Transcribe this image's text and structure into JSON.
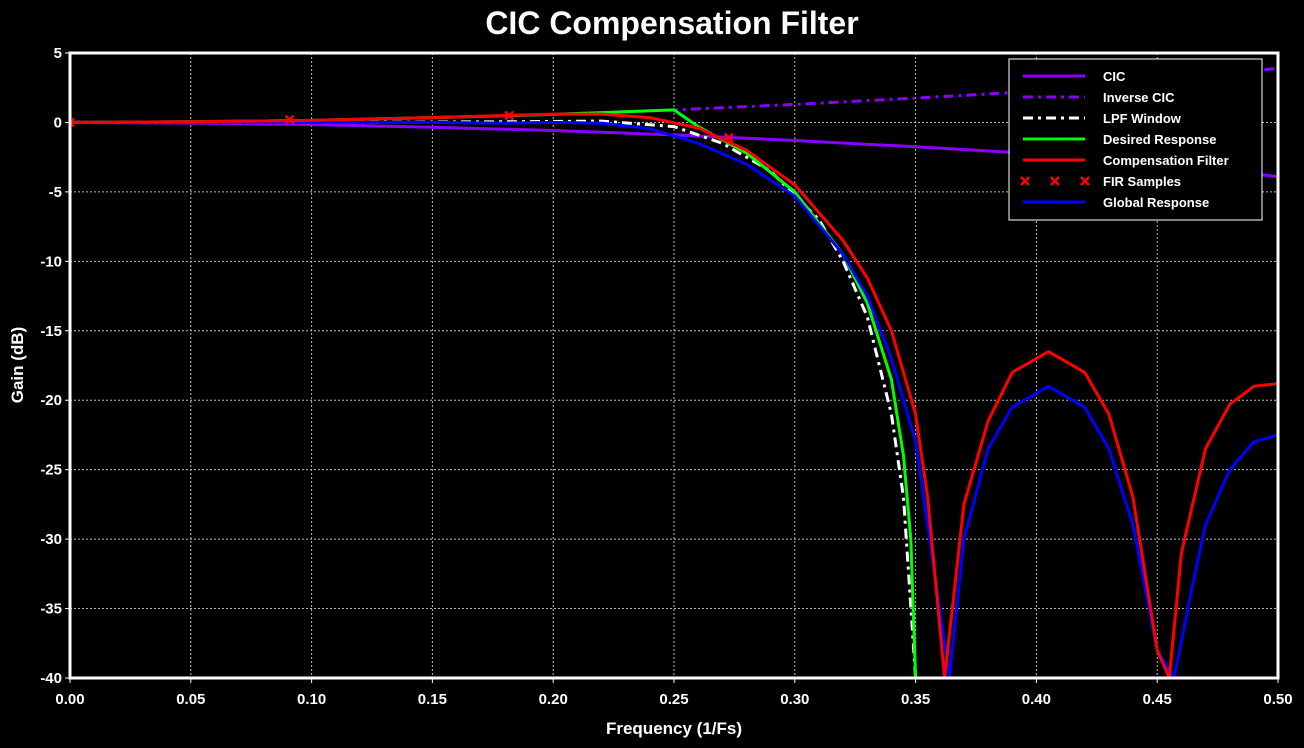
{
  "chart_data": {
    "type": "line",
    "title": "CIC Compensation Filter",
    "xlabel": "Frequency (1/Fs)",
    "ylabel": "Gain (dB)",
    "xlim": [
      0,
      0.5
    ],
    "ylim": [
      -40,
      5
    ],
    "xticks": [
      "0.00",
      "0.05",
      "0.10",
      "0.15",
      "0.20",
      "0.25",
      "0.30",
      "0.35",
      "0.40",
      "0.45",
      "0.50"
    ],
    "yticks": [
      "5",
      "0",
      "-5",
      "-10",
      "-15",
      "-20",
      "-25",
      "-30",
      "-35",
      "-40"
    ],
    "grid": true,
    "background": "#000000",
    "legend_position": "top-right",
    "series": [
      {
        "name": "CIC",
        "color": "#8a00ff",
        "style": "solid",
        "x": [
          0,
          0.05,
          0.1,
          0.15,
          0.2,
          0.25,
          0.3,
          0.35,
          0.4,
          0.45,
          0.5
        ],
        "y": [
          0,
          -0.05,
          -0.15,
          -0.35,
          -0.58,
          -0.9,
          -1.3,
          -1.75,
          -2.25,
          -2.95,
          -3.9
        ]
      },
      {
        "name": "Inverse CIC",
        "color": "#8a00ff",
        "style": "dashdot",
        "x": [
          0,
          0.05,
          0.1,
          0.15,
          0.2,
          0.25,
          0.3,
          0.35,
          0.4,
          0.45,
          0.5
        ],
        "y": [
          0,
          0.05,
          0.15,
          0.35,
          0.58,
          0.9,
          1.3,
          1.75,
          2.25,
          2.95,
          3.9
        ]
      },
      {
        "name": "LPF Window",
        "color": "#ffffff",
        "style": "dashdot",
        "x": [
          0,
          0.1,
          0.18,
          0.22,
          0.25,
          0.27,
          0.29,
          0.31,
          0.32,
          0.33,
          0.34,
          0.345,
          0.35
        ],
        "y": [
          0,
          0,
          0.05,
          0.1,
          -0.3,
          -1.5,
          -3.5,
          -7,
          -10,
          -14,
          -21,
          -27,
          -40
        ]
      },
      {
        "name": "Desired Response",
        "color": "#00ff00",
        "style": "solid",
        "x": [
          0,
          0.05,
          0.1,
          0.15,
          0.2,
          0.25,
          0.26,
          0.28,
          0.3,
          0.32,
          0.33,
          0.34,
          0.345,
          0.348,
          0.35
        ],
        "y": [
          0,
          0.05,
          0.15,
          0.35,
          0.58,
          0.9,
          -0.3,
          -2.2,
          -5,
          -9.5,
          -13,
          -18.5,
          -24,
          -30,
          -40
        ]
      },
      {
        "name": "Compensation Filter",
        "color": "#ff0000",
        "style": "solid",
        "x": [
          0,
          0.05,
          0.1,
          0.15,
          0.18,
          0.2,
          0.22,
          0.24,
          0.26,
          0.28,
          0.3,
          0.32,
          0.33,
          0.34,
          0.35,
          0.355,
          0.362,
          0.37,
          0.38,
          0.39,
          0.405,
          0.42,
          0.43,
          0.44,
          0.45,
          0.455,
          0.46,
          0.47,
          0.48,
          0.49,
          0.5
        ],
        "y": [
          0,
          0.05,
          0.15,
          0.35,
          0.5,
          0.6,
          0.6,
          0.35,
          -0.4,
          -2.0,
          -4.5,
          -8.5,
          -11.2,
          -15,
          -21,
          -27,
          -40,
          -27.5,
          -21.5,
          -18,
          -16.5,
          -18,
          -21,
          -27,
          -38,
          -40,
          -31,
          -23.5,
          -20.3,
          -19,
          -18.8
        ]
      },
      {
        "name": "FIR Samples",
        "color": "#ff0000",
        "style": "markers",
        "x": [
          0,
          0.0909,
          0.1818,
          0.2727
        ],
        "y": [
          0,
          0.2,
          0.5,
          -1.1
        ]
      },
      {
        "name": "Global Response",
        "color": "#0000ff",
        "style": "solid",
        "x": [
          0,
          0.05,
          0.1,
          0.15,
          0.18,
          0.2,
          0.22,
          0.24,
          0.26,
          0.28,
          0.3,
          0.32,
          0.33,
          0.34,
          0.35,
          0.355,
          0.364,
          0.37,
          0.38,
          0.39,
          0.405,
          0.42,
          0.43,
          0.44,
          0.45,
          0.457,
          0.465,
          0.47,
          0.48,
          0.49,
          0.5
        ],
        "y": [
          0,
          0,
          0,
          0,
          -0.05,
          0,
          -0.05,
          -0.45,
          -1.5,
          -3.0,
          -5.3,
          -9.5,
          -12.5,
          -17,
          -23,
          -29,
          -40,
          -30,
          -23.5,
          -20.5,
          -19,
          -20.5,
          -23.5,
          -29,
          -38,
          -40,
          -33,
          -29,
          -25,
          -23,
          -22.5
        ]
      }
    ]
  }
}
